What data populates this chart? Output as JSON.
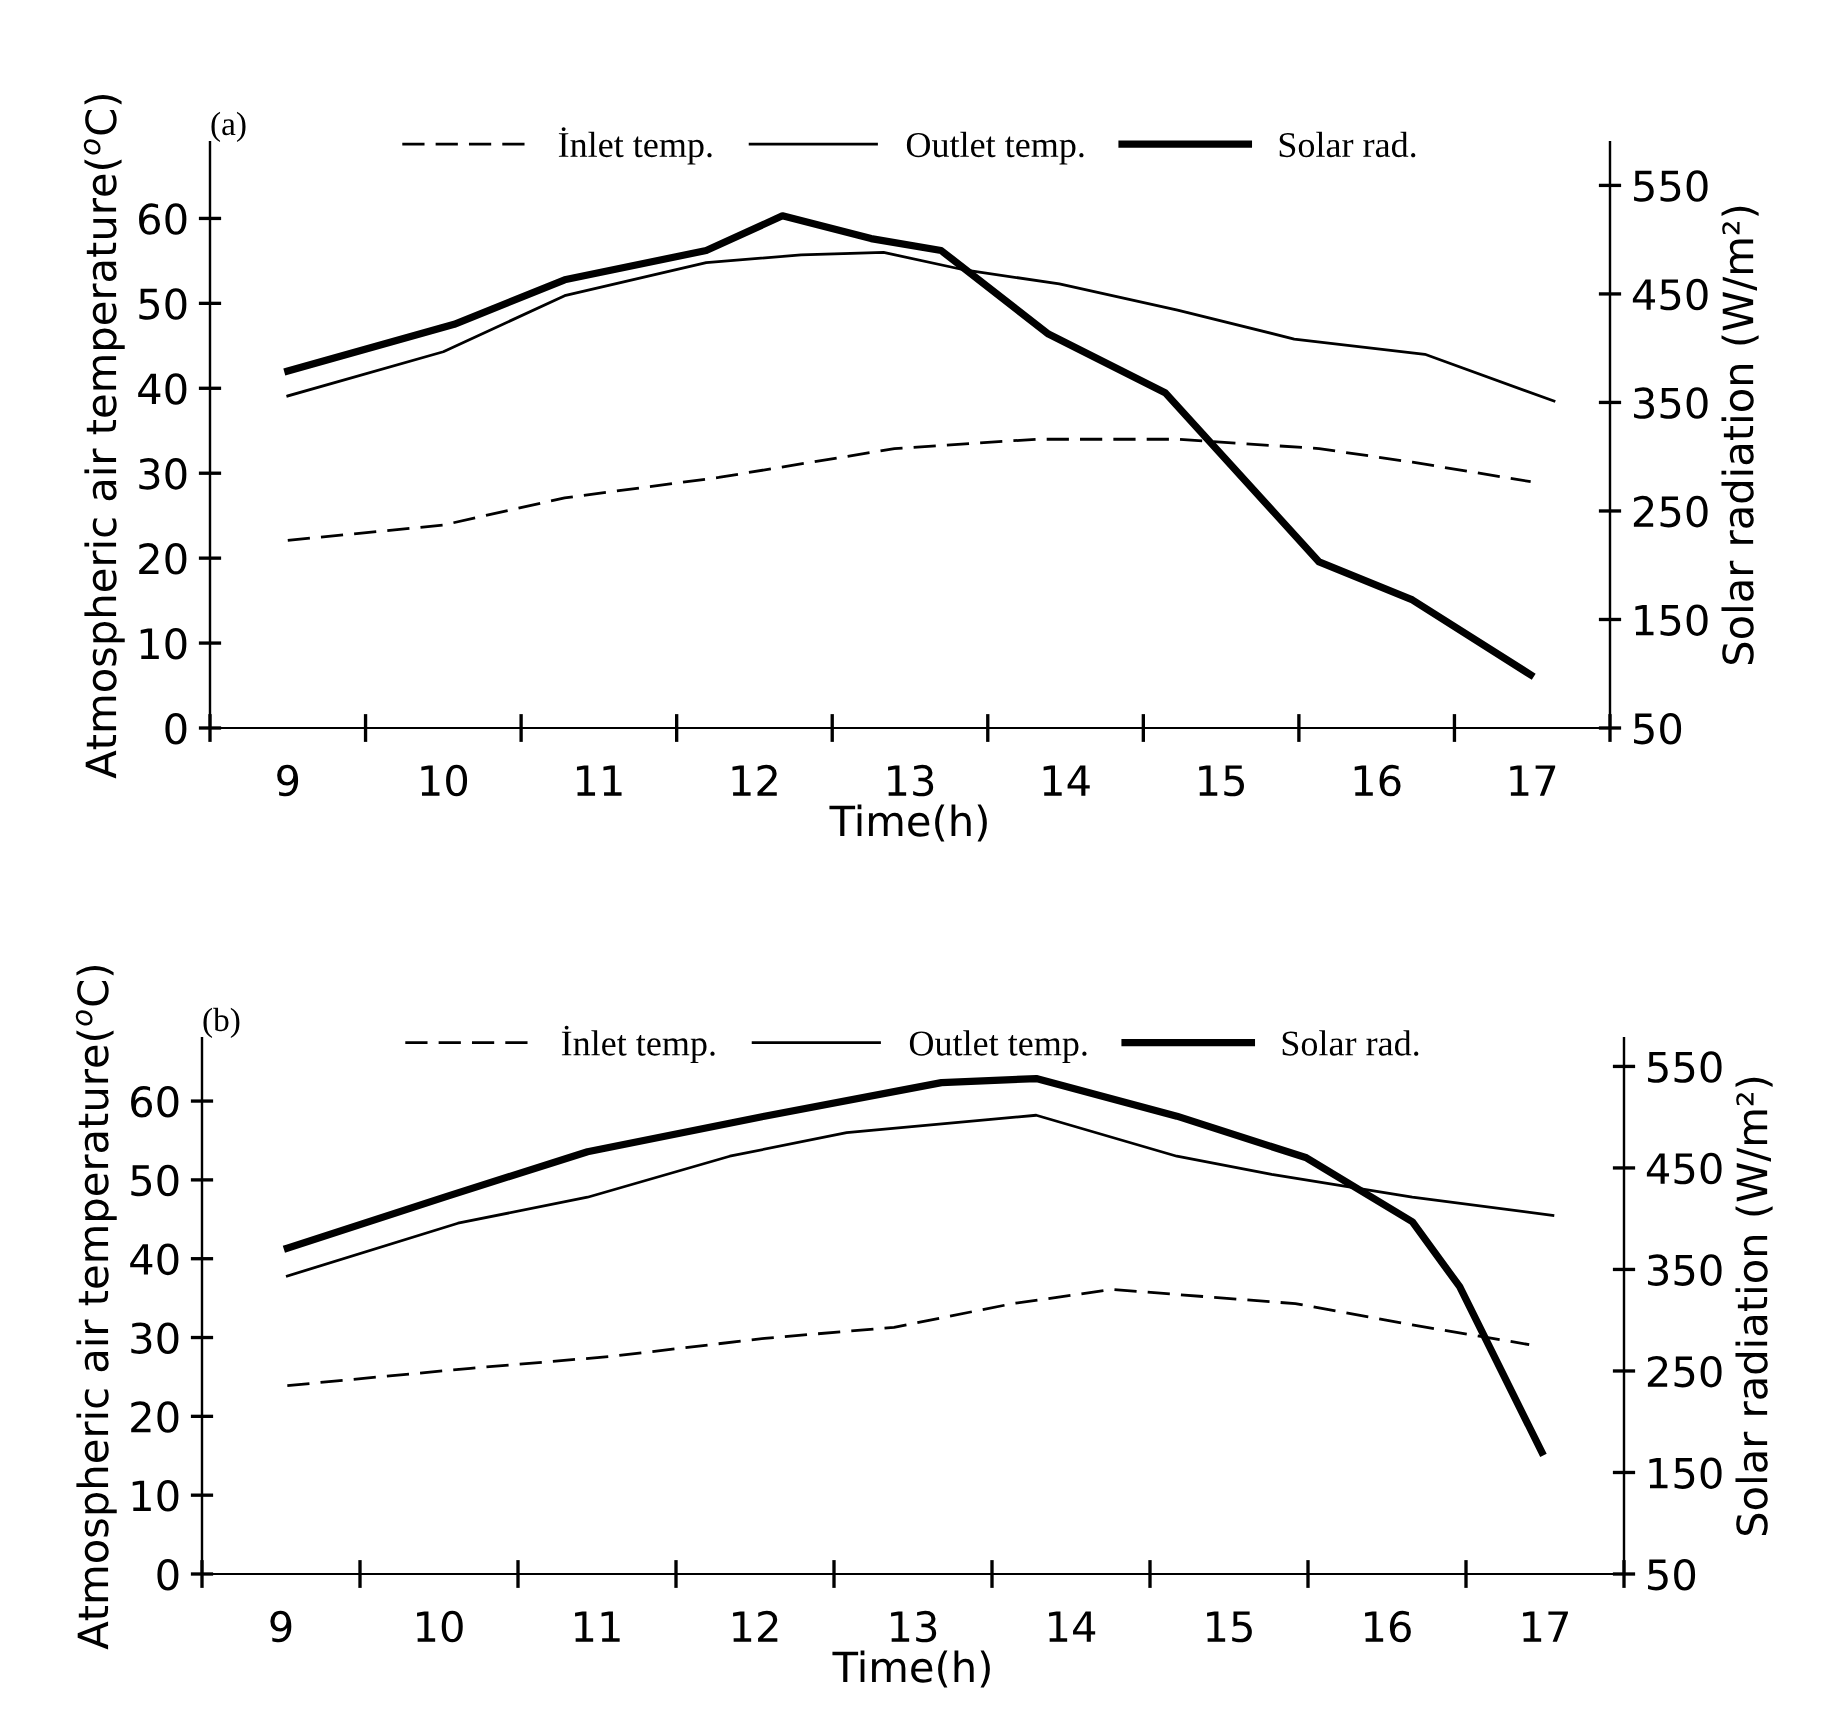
{
  "chart_data": [
    {
      "type": "line",
      "annotations": [
        "(a)"
      ],
      "xlabel": "Time(h)",
      "ylabel": "Atmospheric air temperature($^{o}$C)",
      "y2label": "Solar radiation (W/m²)",
      "xlim": [
        8.5,
        17.5
      ],
      "xticks": [
        {
          "value": 8.5,
          "label": null
        },
        9,
        {
          "value": 9.5,
          "label": null
        },
        10,
        {
          "value": 10.5,
          "label": null
        },
        11,
        {
          "value": 11.5,
          "label": null
        },
        12,
        {
          "value": 12.5,
          "label": null
        },
        13,
        {
          "value": 13.5,
          "label": null
        },
        14,
        {
          "value": 14.5,
          "label": null
        },
        15,
        {
          "value": 15.5,
          "label": null
        },
        16,
        {
          "value": 16.5,
          "label": null
        },
        17,
        {
          "value": 17.5,
          "label": null
        }
      ],
      "ylim": [
        0,
        69
      ],
      "yticks": [
        0,
        10,
        20,
        30,
        40,
        50,
        60
      ],
      "y2lim": [
        50,
        590
      ],
      "y2ticks": [
        50,
        150,
        250,
        350,
        450,
        550
      ],
      "grid": false,
      "legend": "top",
      "marker": "none",
      "series": [
        {
          "name": "İnlet temp.",
          "color": "#000000",
          "line_style": "dashed",
          "x": [
            9.0,
            10.0,
            10.78,
            11.77,
            12.9,
            13.81,
            14.72,
            15.63,
            16.23,
            16.99
          ],
          "values": [
            22.1,
            23.9,
            27.1,
            29.5,
            32.9,
            34,
            34,
            32.9,
            31.3,
            29
          ]
        },
        {
          "name": "Outlet temp.",
          "color": "#000000",
          "line_style": "solid",
          "x": [
            9.0,
            10.0,
            10.78,
            11.69,
            12.3,
            12.83,
            13.36,
            13.96,
            14.72,
            15.47,
            16.31,
            17.14
          ],
          "values": [
            39.1,
            44.3,
            50.9,
            54.8,
            55.7,
            56,
            53.9,
            52.3,
            49.2,
            45.8,
            44,
            38.5
          ]
        },
        {
          "name": "Solar rad.",
          "color": "#000000",
          "line_style": "solid",
          "axis": "y2",
          "x": [
            9.0,
            10.07,
            10.78,
            11.69,
            12.18,
            12.75,
            13.2,
            13.89,
            14.64,
            15.63,
            16.23,
            16.99
          ],
          "values": [
            379,
            422,
            463,
            490,
            522,
            501,
            490,
            413,
            359,
            203,
            168,
            99
          ]
        }
      ]
    },
    {
      "type": "line",
      "annotations": [
        "(b)"
      ],
      "xlabel": "Time(h)",
      "ylabel": "Atmospheric air temperature($^{o}$C)",
      "y2label": "Solar radiation (W/m²)",
      "xlim": [
        8.5,
        17.5
      ],
      "xticks": [
        {
          "value": 8.5,
          "label": null
        },
        9,
        {
          "value": 9.5,
          "label": null
        },
        10,
        {
          "value": 10.5,
          "label": null
        },
        11,
        {
          "value": 11.5,
          "label": null
        },
        12,
        {
          "value": 12.5,
          "label": null
        },
        13,
        {
          "value": 13.5,
          "label": null
        },
        14,
        {
          "value": 14.5,
          "label": null
        },
        15,
        {
          "value": 15.5,
          "label": null
        },
        16,
        {
          "value": 16.5,
          "label": null
        },
        17,
        {
          "value": 17.5,
          "label": null
        }
      ],
      "ylim": [
        0,
        68
      ],
      "yticks": [
        0,
        10,
        20,
        30,
        40,
        50,
        60
      ],
      "y2lim": [
        50,
        578
      ],
      "y2ticks": [
        50,
        150,
        250,
        350,
        450,
        550
      ],
      "grid": false,
      "legend": "top",
      "marker": "none",
      "series": [
        {
          "name": "İnlet temp.",
          "color": "#000000",
          "line_style": "dashed",
          "x": [
            9.04,
            10.2,
            11.09,
            12.06,
            12.88,
            13.63,
            14.26,
            15.42,
            16.16,
            16.9
          ],
          "values": [
            23.9,
            26.1,
            27.6,
            29.9,
            31.3,
            34.3,
            36.1,
            34.3,
            31.6,
            29.1
          ]
        },
        {
          "name": "Outlet temp.",
          "color": "#000000",
          "line_style": "solid",
          "x": [
            9.04,
            10.12,
            10.94,
            11.84,
            12.58,
            13.78,
            14.67,
            15.27,
            16.16,
            17.05
          ],
          "values": [
            37.8,
            44.5,
            47.8,
            53,
            56,
            58.2,
            53,
            50.7,
            47.8,
            45.5
          ]
        },
        {
          "name": "Solar rad.",
          "color": "#000000",
          "line_style": "solid",
          "axis": "y2",
          "x": [
            9.04,
            10.05,
            10.94,
            12.06,
            13.18,
            13.78,
            14.67,
            15.49,
            16.16,
            16.46,
            16.98
          ],
          "values": [
            371,
            422,
            466,
            501,
            534,
            538,
            501,
            460,
            397,
            333,
            170
          ]
        }
      ]
    }
  ]
}
